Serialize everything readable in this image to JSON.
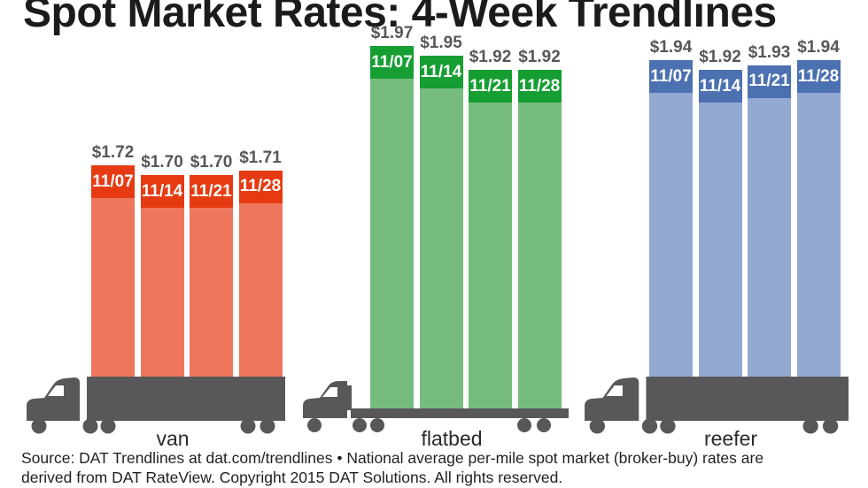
{
  "title": "Spot Market Rates: 4-Week Trendlines",
  "source": {
    "line1": "Source: DAT Trendlines at dat.com/trendlines • National average per-mile spot market (broker-buy) rates are",
    "line2": "derived from DAT RateView. Copyright 2015 DAT Solutions. All rights reserved."
  },
  "colors": {
    "background": "#ffffff",
    "title_text": "#1b1b1b",
    "value_label_text": "#56575a",
    "date_label_text": "#ffffff",
    "truck": "#58585a",
    "category_label_text": "#2a2a2a",
    "source_text": "#231f20",
    "van_header": "#e53a12",
    "van_body": "#ee765c",
    "flatbed_header": "#179e33",
    "flatbed_body": "#76bc7e",
    "reefer_header": "#4b71b1",
    "reefer_body": "#93a9d2"
  },
  "chart_data": {
    "type": "bar",
    "title": "Spot Market Rates: 4-Week Trendlines",
    "subtitle": "",
    "unit": "US dollars per mile",
    "value_prefix": "$",
    "categories": [
      "van",
      "flatbed",
      "reefer"
    ],
    "week_labels": [
      "11/07",
      "11/14",
      "11/21",
      "11/28"
    ],
    "series": [
      {
        "name": "van",
        "color_header": "#e53a12",
        "color_body": "#ee765c",
        "values": [
          1.72,
          1.7,
          1.7,
          1.71
        ],
        "value_labels": [
          "$1.72",
          "$1.70",
          "$1.70",
          "$1.71"
        ]
      },
      {
        "name": "flatbed",
        "color_header": "#179e33",
        "color_body": "#76bc7e",
        "values": [
          1.97,
          1.95,
          1.92,
          1.92
        ],
        "value_labels": [
          "$1.97",
          "$1.95",
          "$1.92",
          "$1.92"
        ]
      },
      {
        "name": "reefer",
        "color_header": "#4b71b1",
        "color_body": "#93a9d2",
        "values": [
          1.94,
          1.92,
          1.93,
          1.94
        ],
        "value_labels": [
          "$1.94",
          "$1.92",
          "$1.93",
          "$1.94"
        ]
      }
    ],
    "ylim": [
      1.26,
      2.0
    ],
    "grid": false,
    "legend_position": "none",
    "annotations": "each bar capped with its week label; dollar value printed above each bar; bars stand on truck silhouettes"
  }
}
